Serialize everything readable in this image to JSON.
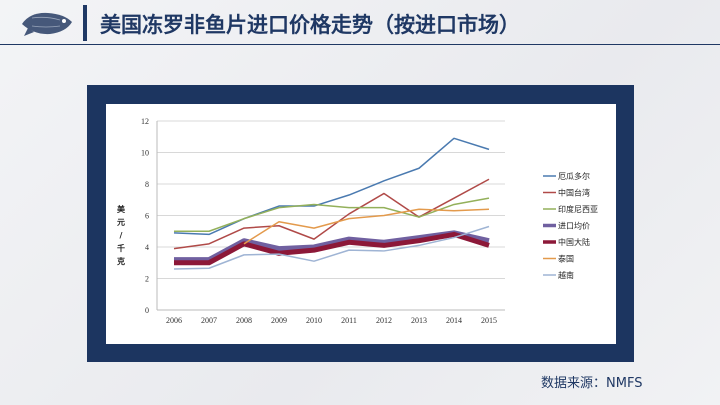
{
  "header": {
    "title": "美国冻罗非鱼片进口价格走势（按进口市场）"
  },
  "source": "数据来源：NMFS",
  "chart_data": {
    "type": "line",
    "title": "",
    "xlabel": "",
    "ylabel": "美元/千克",
    "ylabel_parts": [
      "美",
      "元",
      "/",
      "千",
      "克"
    ],
    "ylim": [
      0,
      12
    ],
    "yticks": [
      "0",
      "2",
      "4",
      "6",
      "8",
      "10",
      "12"
    ],
    "categories": [
      "2006",
      "2007",
      "2008",
      "2009",
      "2010",
      "2011",
      "2012",
      "2013",
      "2014",
      "2015"
    ],
    "grid": true,
    "legend": "right",
    "series": [
      {
        "name": "厄瓜多尔",
        "color": "#4a7ab0",
        "width": 1.5,
        "values": [
          4.9,
          4.8,
          5.8,
          6.6,
          6.6,
          7.3,
          8.2,
          9.0,
          10.9,
          10.2
        ]
      },
      {
        "name": "中国台湾",
        "color": "#b04a48",
        "width": 1.5,
        "values": [
          3.9,
          4.2,
          5.2,
          5.35,
          4.5,
          6.1,
          7.4,
          5.9,
          7.1,
          8.3
        ]
      },
      {
        "name": "印度尼西亚",
        "color": "#93b05a",
        "width": 1.5,
        "values": [
          5.0,
          5.0,
          5.8,
          6.5,
          6.7,
          6.5,
          6.5,
          5.9,
          6.7,
          7.1
        ]
      },
      {
        "name": "进口均价",
        "color": "#7060a0",
        "width": 5,
        "values": [
          3.2,
          3.2,
          4.4,
          3.9,
          4.0,
          4.5,
          4.3,
          4.6,
          4.9,
          4.4
        ]
      },
      {
        "name": "中国大陆",
        "color": "#8c1838",
        "width": 5,
        "values": [
          3.0,
          3.0,
          4.2,
          3.6,
          3.8,
          4.3,
          4.1,
          4.4,
          4.8,
          4.1
        ]
      },
      {
        "name": "泰国",
        "color": "#e39a4c",
        "width": 1.5,
        "values": [
          null,
          null,
          4.2,
          5.6,
          5.2,
          5.8,
          6.0,
          6.4,
          6.3,
          6.4
        ]
      },
      {
        "name": "越南",
        "color": "#9fb4d4",
        "width": 1.5,
        "values": [
          2.6,
          2.65,
          3.5,
          3.55,
          3.1,
          3.8,
          3.75,
          4.1,
          4.6,
          5.3
        ]
      }
    ]
  }
}
